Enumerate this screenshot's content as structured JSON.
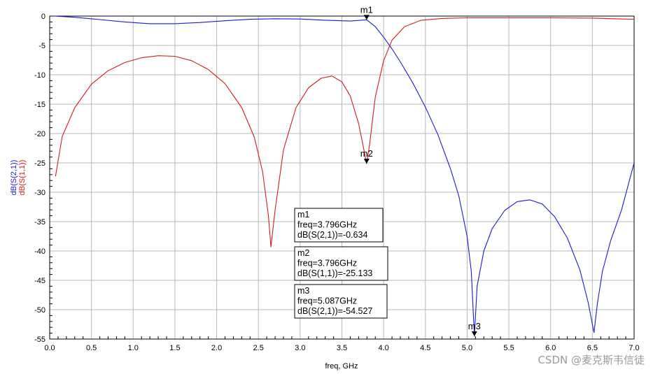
{
  "chart_data": {
    "type": "line",
    "xlabel": "freq, GHz",
    "ylabel_series": [
      "dB(S(2,1))",
      "dB(S(1,1))"
    ],
    "xlim": [
      0.0,
      7.0
    ],
    "ylim": [
      -55,
      0
    ],
    "x_ticks": [
      "0.0",
      "0.5",
      "1.0",
      "1.5",
      "2.0",
      "2.5",
      "3.0",
      "3.5",
      "4.0",
      "4.5",
      "5.0",
      "5.5",
      "6.0",
      "6.5",
      "7.0"
    ],
    "y_ticks": [
      "0",
      "-5",
      "-10",
      "-15",
      "-20",
      "-25",
      "-30",
      "-35",
      "-40",
      "-45",
      "-50",
      "-55"
    ],
    "grid": true,
    "series": [
      {
        "name": "dB(S(2,1))",
        "color": "#1a1ad6",
        "x": [
          0.05,
          0.3,
          0.6,
          0.9,
          1.2,
          1.5,
          1.8,
          2.1,
          2.4,
          2.7,
          3.0,
          3.3,
          3.6,
          3.796,
          3.9,
          4.0,
          4.1,
          4.2,
          4.35,
          4.5,
          4.65,
          4.8,
          4.9,
          5.0,
          5.05,
          5.087,
          5.12,
          5.2,
          5.3,
          5.45,
          5.6,
          5.75,
          5.9,
          6.05,
          6.2,
          6.35,
          6.45,
          6.52,
          6.56,
          6.62,
          6.72,
          6.85,
          7.0
        ],
        "y": [
          0,
          -0.2,
          -0.6,
          -1.0,
          -1.3,
          -1.3,
          -1.1,
          -0.8,
          -0.55,
          -0.45,
          -0.5,
          -0.7,
          -0.85,
          -0.634,
          -1.8,
          -3.6,
          -5.6,
          -7.8,
          -11.4,
          -15.5,
          -20.2,
          -26,
          -30.6,
          -37.5,
          -43.5,
          -54.527,
          -46,
          -40,
          -36.2,
          -33.1,
          -31.6,
          -31.3,
          -32,
          -34.2,
          -37.8,
          -43.2,
          -48.8,
          -53.9,
          -49,
          -43.5,
          -38.2,
          -33,
          -25
        ]
      },
      {
        "name": "dB(S(1,1))",
        "color": "#d61a1a",
        "x": [
          0.07,
          0.15,
          0.3,
          0.5,
          0.7,
          0.9,
          1.1,
          1.3,
          1.5,
          1.7,
          1.9,
          2.1,
          2.3,
          2.45,
          2.55,
          2.62,
          2.65,
          2.7,
          2.8,
          2.95,
          3.1,
          3.25,
          3.38,
          3.5,
          3.6,
          3.7,
          3.76,
          3.796,
          3.83,
          3.9,
          4.0,
          4.1,
          4.25,
          4.45,
          4.7,
          5.0,
          5.5,
          6.0,
          6.5,
          7.0
        ],
        "y": [
          -27.3,
          -20.5,
          -15.6,
          -11.6,
          -9.3,
          -7.9,
          -7.1,
          -6.75,
          -6.85,
          -7.6,
          -9.1,
          -11.5,
          -15.6,
          -20.6,
          -26.5,
          -34,
          -39.3,
          -33,
          -22.8,
          -15.6,
          -12.2,
          -10.6,
          -10.2,
          -11.2,
          -13.6,
          -18.3,
          -22.5,
          -25.133,
          -22,
          -13.8,
          -7.6,
          -4.1,
          -1.8,
          -0.7,
          -0.4,
          -0.3,
          -0.3,
          -0.3,
          -0.35,
          -0.55
        ]
      }
    ],
    "markers": [
      {
        "label": "m1",
        "x": 3.796,
        "y": -0.634,
        "series": "dB(S(2,1))"
      },
      {
        "label": "m2",
        "x": 3.796,
        "y": -25.133,
        "series": "dB(S(1,1))"
      },
      {
        "label": "m3",
        "x": 5.087,
        "y": -54.527,
        "series": "dB(S(2,1))"
      }
    ],
    "marker_readouts": [
      {
        "name": "m1",
        "freq": "freq=3.796GHz",
        "value": "dB(S(2,1))=-0.634"
      },
      {
        "name": "m2",
        "freq": "freq=3.796GHz",
        "value": "dB(S(1,1))=-25.133"
      },
      {
        "name": "m3",
        "freq": "freq=5.087GHz",
        "value": "dB(S(2,1))=-54.527"
      }
    ]
  },
  "watermark": "CSDN @麦克斯韦信徒"
}
